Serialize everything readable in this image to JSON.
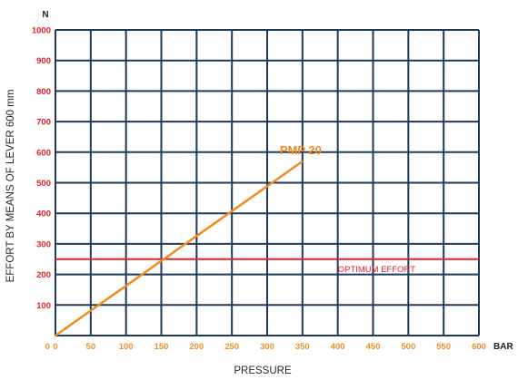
{
  "chart_data": {
    "type": "line",
    "x_unit": "BAR",
    "y_unit": "N",
    "xlabel": "PRESSURE",
    "ylabel": "EFFORT BY MEANS OF LEVER 600 mm",
    "xlim": [
      0,
      600
    ],
    "ylim": [
      0,
      1000
    ],
    "x_ticks": [
      0,
      50,
      100,
      150,
      200,
      250,
      300,
      350,
      400,
      450,
      500,
      550,
      600
    ],
    "y_ticks": [
      100,
      200,
      300,
      400,
      500,
      600,
      700,
      800,
      900,
      1000
    ],
    "y_zero_label": "0",
    "grid": true,
    "series": [
      {
        "name": "PMP 20",
        "color": "#f28a1c",
        "x": [
          0,
          350
        ],
        "y": [
          0,
          570
        ]
      }
    ],
    "reference_lines": [
      {
        "label": "OPTIMUM EFFORT",
        "y": 250,
        "color": "#e8202a"
      }
    ],
    "colors": {
      "grid": "#1f3a5c",
      "x_tick": "#e8902c",
      "y_tick": "#e8202a"
    }
  }
}
